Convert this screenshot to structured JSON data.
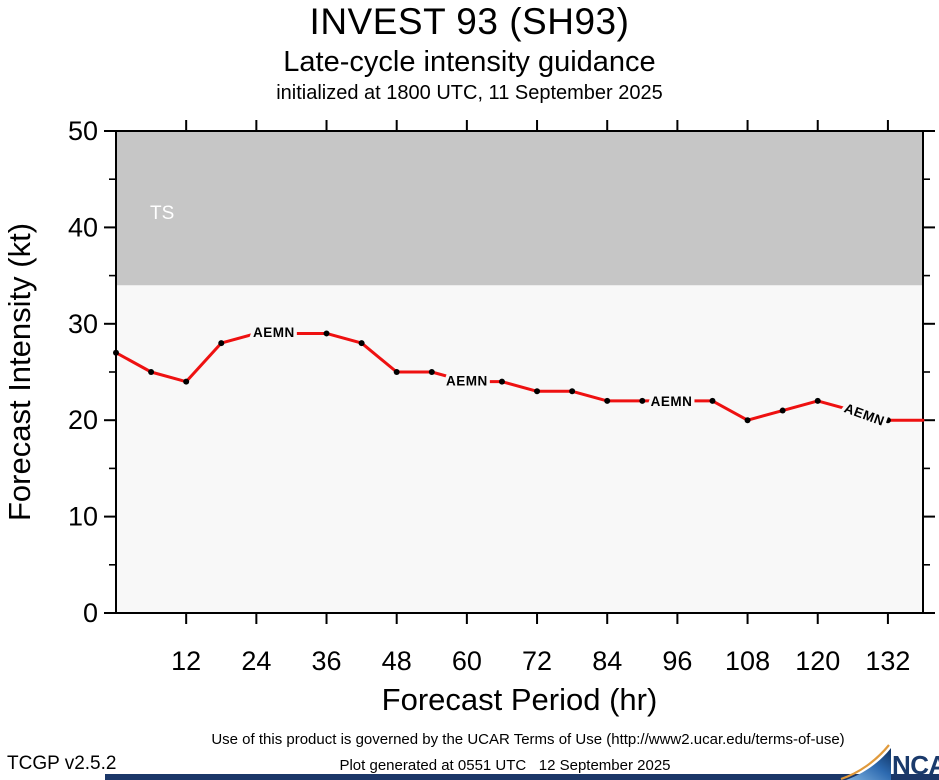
{
  "header": {
    "title": "INVEST 93 (SH93)",
    "subtitle": "Late-cycle intensity guidance",
    "init_line": "initialized at 1800 UTC, 11 September 2025"
  },
  "chart_data": {
    "type": "line",
    "title": "INVEST 93 (SH93)",
    "subtitle": "Late-cycle intensity guidance",
    "initialized": "initialized at 1800 UTC, 11 September 2025",
    "xlabel": "Forecast Period (hr)",
    "ylabel": "Forecast Intensity (kt)",
    "xlim": [
      0,
      138
    ],
    "ylim": [
      0,
      50
    ],
    "x_ticks": [
      12,
      24,
      36,
      48,
      60,
      72,
      84,
      96,
      108,
      120,
      132
    ],
    "y_major_ticks": [
      0,
      10,
      20,
      30,
      40,
      50
    ],
    "y_minor_ticks": [
      5,
      15,
      25,
      35,
      45
    ],
    "grid": false,
    "legend_position": "inline-labels",
    "threshold_band": {
      "label": "TS",
      "from": 34,
      "to": 50,
      "color": "#c6c6c6"
    },
    "plot_bg_color": "#f8f8f8",
    "series": [
      {
        "name": "AEMN",
        "color": "#ee1111",
        "x": [
          0,
          6,
          12,
          18,
          24,
          30,
          36,
          42,
          48,
          54,
          60,
          66,
          72,
          78,
          84,
          90,
          96,
          102,
          108,
          114,
          120,
          126,
          132,
          138
        ],
        "values": [
          27,
          25,
          24,
          28,
          29,
          29,
          29,
          28,
          25,
          25,
          24,
          24,
          23,
          23,
          22,
          22,
          22,
          22,
          20,
          21,
          22,
          21,
          20,
          20
        ]
      }
    ],
    "series_labels": [
      {
        "text": "AEMN",
        "x": 27,
        "y": 29.1,
        "rotate": 0
      },
      {
        "text": "AEMN",
        "x": 60,
        "y": 24.1,
        "rotate": 0
      },
      {
        "text": "AEMN",
        "x": 95,
        "y": 21.95,
        "rotate": 0
      },
      {
        "text": "AEMN",
        "x": 128,
        "y": 20.6,
        "rotate": 20
      }
    ],
    "label_hidden_points": [
      24,
      30,
      60,
      96,
      126,
      138
    ]
  },
  "footer": {
    "terms": "Use of this product is governed by the UCAR Terms of Use (http://www2.ucar.edu/terms-of-use)",
    "version": "TCGP v2.5.2",
    "generated": "Plot generated at 0551 UTC   12 September 2025",
    "logo_text": "NCAR"
  },
  "colors": {
    "line_red": "#ee1111",
    "band_gray": "#c6c6c6",
    "plot_bg": "#f8f8f8",
    "brand_navy": "#1b3768",
    "logo_orange": "#e09a3c"
  }
}
